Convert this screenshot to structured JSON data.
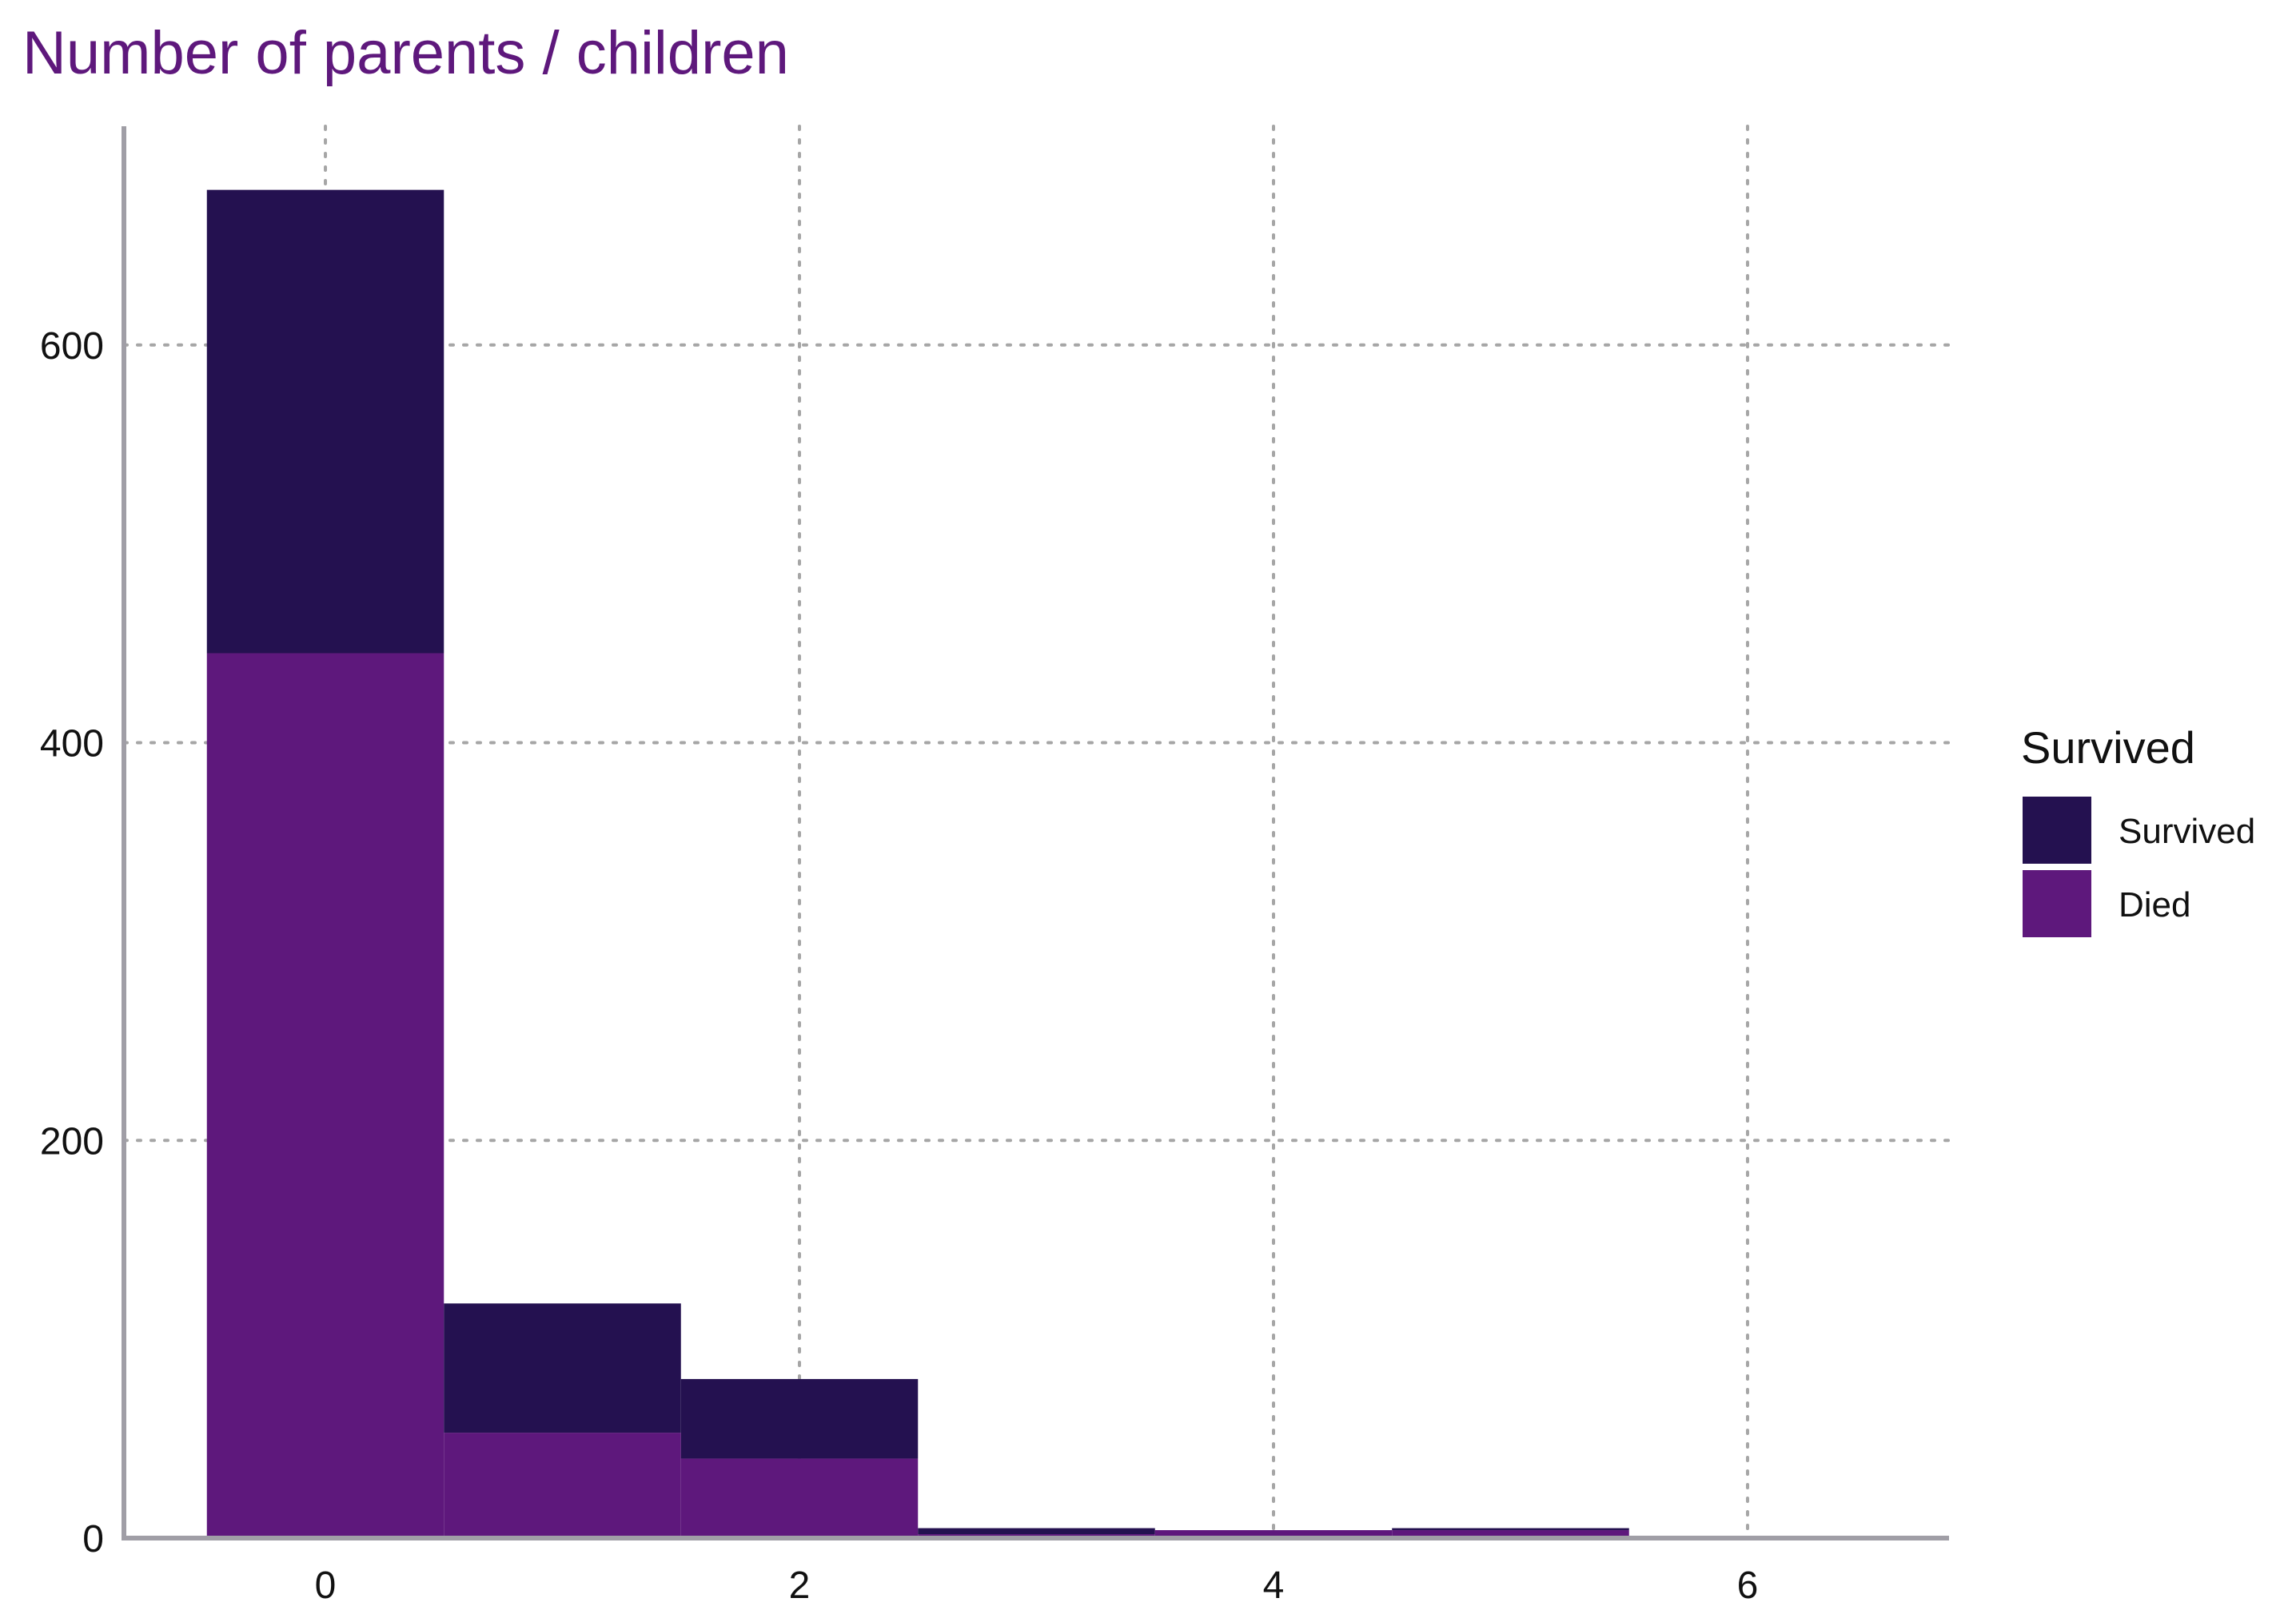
{
  "chart_data": {
    "type": "bar",
    "title": "Number of parents / children",
    "xlabel": "",
    "ylabel": "",
    "x": [
      0,
      1,
      2,
      3,
      4,
      5,
      6
    ],
    "series": [
      {
        "name": "Died",
        "values": [
          445,
          53,
          40,
          2,
          4,
          4,
          1
        ]
      },
      {
        "name": "Survived",
        "values": [
          233,
          65,
          40,
          3,
          0,
          1,
          0
        ]
      }
    ],
    "xlim": [
      -0.85,
      6.85
    ],
    "ylim": [
      0,
      710
    ],
    "x_ticks": [
      "0",
      "2",
      "4",
      "6"
    ],
    "y_ticks": [
      "0",
      "200",
      "400",
      "600"
    ],
    "grid": true,
    "stacked": true,
    "legend": {
      "title": "Survived",
      "placement": "right",
      "entries": [
        {
          "label": "Survived",
          "color": "#241150"
        },
        {
          "label": "Died",
          "color": "#5e187c"
        }
      ]
    },
    "colors": {
      "Survived": "#241150",
      "Died": "#5e187c",
      "title": "#5e187c",
      "axis": "#a09ea6",
      "grid": "#a6a6a6"
    }
  }
}
